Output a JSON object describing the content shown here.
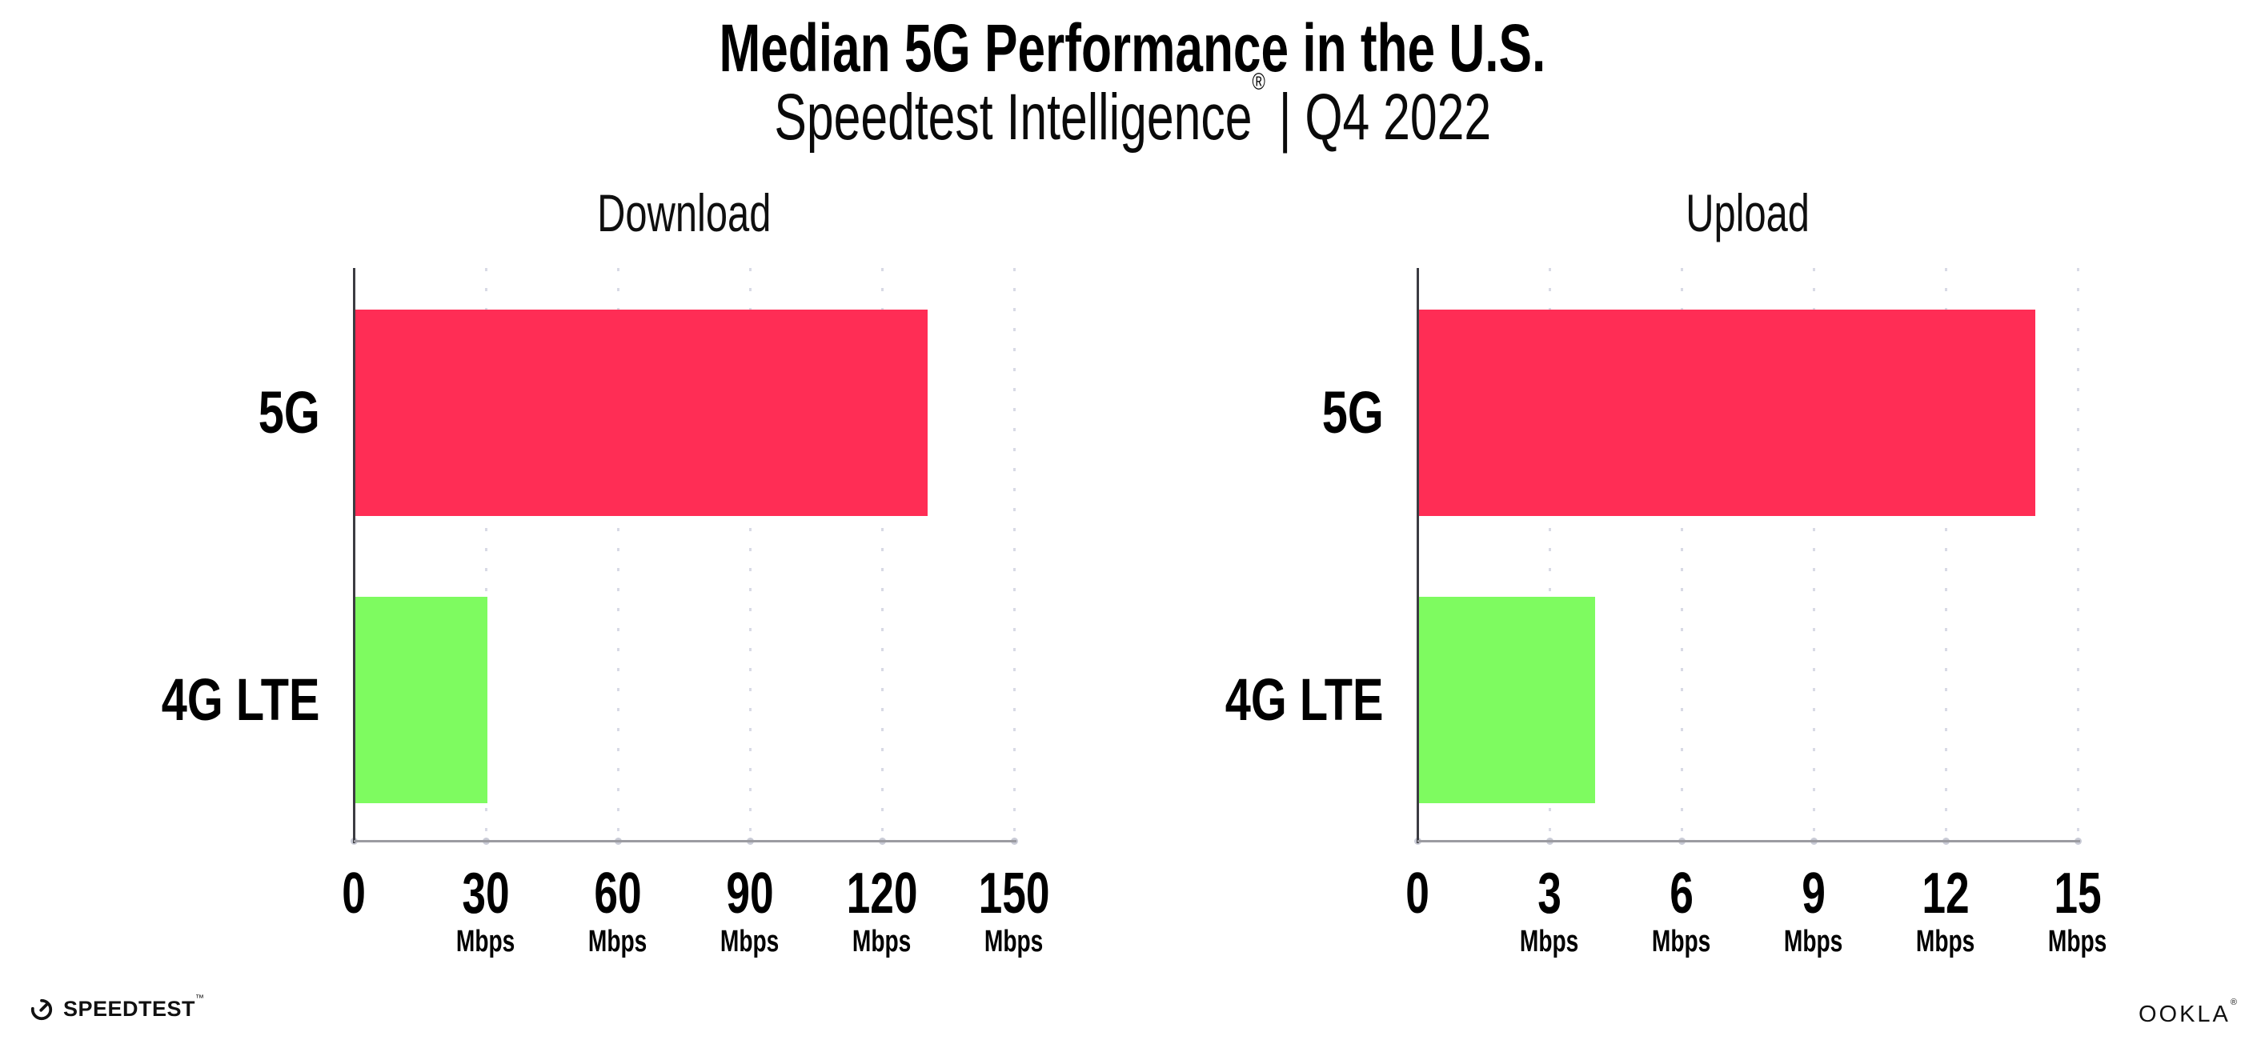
{
  "header": {
    "title": "Median 5G Performance in the U.S.",
    "subtitle_brand": "Speedtest Intelligence",
    "subtitle_reg": "®",
    "subtitle_suffix": " | Q4 2022"
  },
  "footer": {
    "speedtest_label": "SPEEDTEST",
    "speedtest_tm": "™",
    "ookla_label": "OOKLA",
    "ookla_reg": "®",
    "speedtest_icon": "gauge-icon"
  },
  "colors": {
    "bar_5g": "#FF2D55",
    "bar_4g_lte": "#7EFB60",
    "axis_vertical": "#3c3c42",
    "axis_horizontal": "#9b9ba1",
    "gridline": "#d8dae6",
    "text": "#000000",
    "background": "#ffffff"
  },
  "chart_data": [
    {
      "type": "bar",
      "orientation": "horizontal",
      "title": "Download",
      "categories": [
        "5G",
        "4G LTE"
      ],
      "values": [
        130,
        30
      ],
      "unit": "Mbps",
      "xlim": [
        0,
        150
      ],
      "xticks": [
        0,
        30,
        60,
        90,
        120,
        150
      ],
      "bar_colors": [
        "#FF2D55",
        "#7EFB60"
      ],
      "grid": "dotted-vertical-at-ticks",
      "legend": "none"
    },
    {
      "type": "bar",
      "orientation": "horizontal",
      "title": "Upload",
      "categories": [
        "5G",
        "4G LTE"
      ],
      "values": [
        14,
        4
      ],
      "unit": "Mbps",
      "xlim": [
        0,
        15
      ],
      "xticks": [
        0,
        3,
        6,
        9,
        12,
        15
      ],
      "bar_colors": [
        "#FF2D55",
        "#7EFB60"
      ],
      "grid": "dotted-vertical-at-ticks",
      "legend": "none"
    }
  ]
}
